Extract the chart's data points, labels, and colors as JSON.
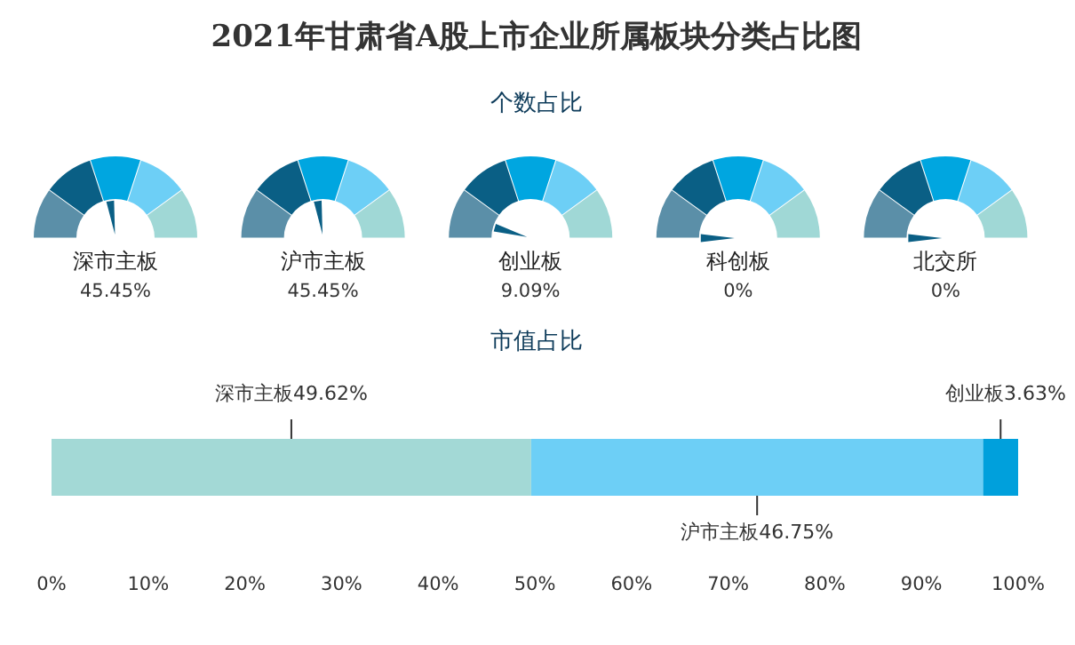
{
  "chart_data": [
    {
      "type": "other",
      "title": "2021年甘肃省A股上市企业所属板块分类占比图",
      "subtitle": "个数占比",
      "categories": [
        "深市主板",
        "沪市主板",
        "创业板",
        "科创板",
        "北交所"
      ],
      "values": [
        45.45,
        45.45,
        9.09,
        0,
        0
      ],
      "value_labels": [
        "45.45%",
        "45.45%",
        "9.09%",
        "0%",
        "0%"
      ],
      "colors": [
        "#5b8fa8",
        "#0a5f85",
        "#00a6e0",
        "#6dcff6",
        "#a0d8d6"
      ]
    },
    {
      "type": "bar",
      "orientation": "horizontal",
      "stacked": true,
      "title": "市值占比",
      "categories": [
        null
      ],
      "series": [
        {
          "name": "深市主板",
          "color": "#a3d9d6",
          "values": [
            49.62
          ],
          "value_labels": [
            "49.62%"
          ]
        },
        {
          "name": "沪市主板",
          "color": "#6dcff6",
          "values": [
            46.75
          ],
          "value_labels": [
            "46.75%"
          ]
        },
        {
          "name": "创业板",
          "color": "#00a0dc",
          "values": [
            3.63
          ],
          "value_labels": [
            "3.63%"
          ]
        }
      ],
      "xlim": [
        0,
        100
      ],
      "xticks": [
        {
          "value": 0,
          "label": "0%"
        },
        {
          "value": 10,
          "label": "10%"
        },
        {
          "value": 20,
          "label": "20%"
        },
        {
          "value": 30,
          "label": "30%"
        },
        {
          "value": 40,
          "label": "40%"
        },
        {
          "value": 50,
          "label": "50%"
        },
        {
          "value": 60,
          "label": "60%"
        },
        {
          "value": 70,
          "label": "70%"
        },
        {
          "value": 80,
          "label": "80%"
        },
        {
          "value": 90,
          "label": "90%"
        },
        {
          "value": 100,
          "label": "100%"
        }
      ],
      "grid": false
    }
  ]
}
